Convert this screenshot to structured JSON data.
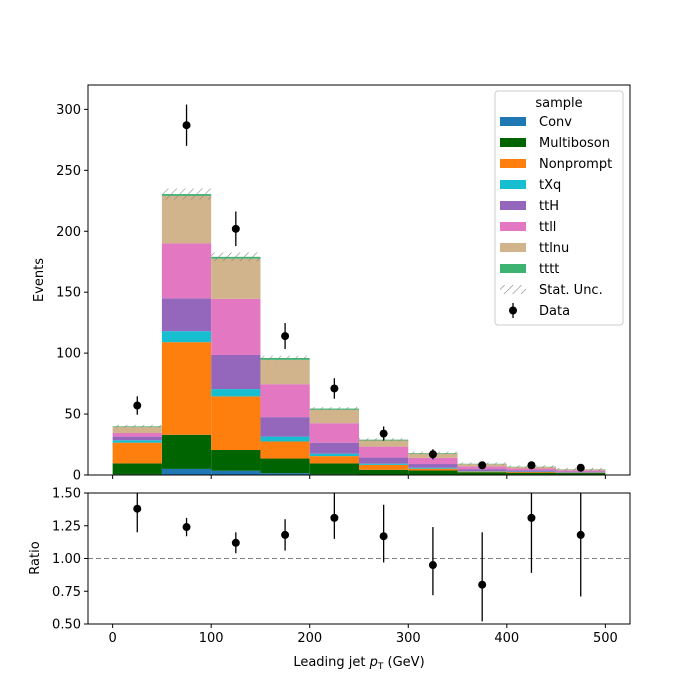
{
  "chart_data": [
    {
      "type": "bar",
      "subtype": "stacked-histogram",
      "title": "",
      "xlabel": "",
      "ylabel": "Events",
      "xlim": [
        -25,
        525
      ],
      "ylim": [
        0,
        320
      ],
      "yticks": [
        0,
        50,
        100,
        150,
        200,
        250,
        300
      ],
      "xticks": [
        0,
        100,
        200,
        300,
        400,
        500
      ],
      "bin_edges": [
        0,
        50,
        100,
        150,
        200,
        250,
        300,
        350,
        400,
        450,
        500
      ],
      "series": [
        {
          "name": "Conv",
          "color": "#1f77b4",
          "values": [
            0.5,
            5,
            3.5,
            1.5,
            0.5,
            0.3,
            0.2,
            0.1,
            0.1,
            0.1
          ]
        },
        {
          "name": "Multiboson",
          "color": "#006400",
          "values": [
            9,
            28,
            17,
            12,
            9,
            4,
            3.5,
            2.2,
            1.8,
            1.5
          ]
        },
        {
          "name": "Nonprompt",
          "color": "#ff7f0e",
          "values": [
            17,
            76,
            44,
            14,
            6,
            4,
            1.5,
            0.5,
            0.6,
            0.3
          ]
        },
        {
          "name": "tXq",
          "color": "#17becf",
          "values": [
            2,
            9,
            6,
            4,
            2,
            1,
            0.8,
            0.4,
            0.3,
            0.2
          ]
        },
        {
          "name": "ttH",
          "color": "#9467bd",
          "values": [
            3,
            27,
            28,
            16,
            9,
            5,
            3,
            1.6,
            1,
            0.7
          ]
        },
        {
          "name": "ttll",
          "color": "#e377c2",
          "values": [
            3,
            45,
            46,
            27,
            16,
            9,
            5,
            2.3,
            1.5,
            1
          ]
        },
        {
          "name": "ttlnu",
          "color": "#d2b48c",
          "values": [
            5,
            39,
            33,
            20,
            11,
            5,
            3.5,
            1.8,
            1.3,
            0.7
          ]
        },
        {
          "name": "tttt",
          "color": "#3cb371",
          "values": [
            0.5,
            1.5,
            1.5,
            1.5,
            1,
            0.7,
            0.5,
            0.3,
            0.2,
            0.2
          ]
        }
      ],
      "stat_unc": {
        "name": "Stat. Unc.",
        "rel_width": 0.02
      },
      "data": {
        "name": "Data",
        "x": [
          25,
          75,
          125,
          175,
          225,
          275,
          325,
          375,
          425,
          475
        ],
        "y": [
          57,
          287,
          202,
          114,
          71,
          34,
          17,
          8,
          8,
          6
        ]
      },
      "legend": {
        "title": "sample",
        "placement": "top-right"
      }
    },
    {
      "type": "scatter",
      "title": "",
      "xlabel": "Leading jet  p_T (GeV)",
      "xlabel_main": "Leading jet  ",
      "xlabel_symbol": "p",
      "xlabel_sub": "T",
      "xlabel_unit": " (GeV)",
      "ylabel": "Ratio",
      "xlim": [
        -25,
        525
      ],
      "ylim": [
        0.5,
        1.5
      ],
      "yticks": [
        "0.50",
        "0.75",
        "1.00",
        "1.25",
        "1.50"
      ],
      "xticks": [
        "0",
        "100",
        "200",
        "300",
        "400",
        "500"
      ],
      "reference_line": 1.0,
      "x": [
        25,
        75,
        125,
        175,
        225,
        275,
        325,
        375,
        425,
        475
      ],
      "y": [
        1.38,
        1.24,
        1.12,
        1.18,
        1.31,
        1.17,
        0.95,
        0.8,
        1.31,
        1.18
      ],
      "y_low": [
        1.2,
        1.17,
        1.04,
        1.06,
        1.15,
        0.97,
        0.72,
        0.52,
        0.89,
        0.71
      ],
      "y_high": [
        1.56,
        1.31,
        1.2,
        1.3,
        1.5,
        1.41,
        1.24,
        1.2,
        1.5,
        1.5
      ]
    }
  ]
}
